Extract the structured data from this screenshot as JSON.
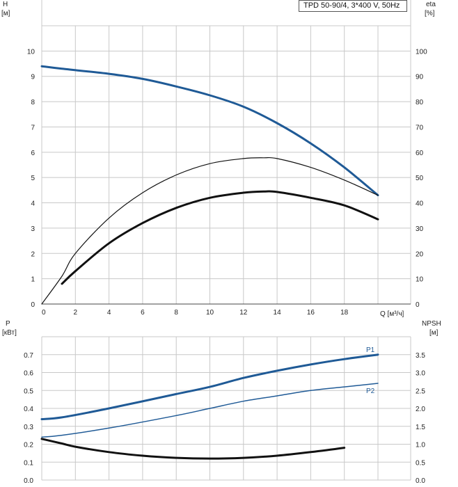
{
  "title": "TPD 50-90/4, 3*400 V, 50Hz",
  "colors": {
    "blue": "#1f5a96",
    "black": "#111111",
    "grid": "#c8c8c8"
  },
  "chart_data": [
    {
      "type": "line",
      "name": "head-efficiency",
      "xlabel": "Q [м³/ч]",
      "ylabel_left": "H",
      "ylabel_left_unit": "[м]",
      "ylabel_right": "eta",
      "ylabel_right_unit": "[%]",
      "xlim": [
        0,
        20
      ],
      "ylim_left": [
        0,
        11
      ],
      "ylim_right": [
        0,
        110
      ],
      "x_ticks": [
        "0",
        "2",
        "4",
        "6",
        "8",
        "10",
        "12",
        "14",
        "16",
        "18"
      ],
      "y_ticks_left": [
        "0",
        "1",
        "2",
        "3",
        "4",
        "5",
        "6",
        "7",
        "8",
        "9",
        "10"
      ],
      "y_ticks_right": [
        "0",
        "10",
        "20",
        "30",
        "40",
        "50",
        "60",
        "70",
        "80",
        "90",
        "100"
      ],
      "grid": true,
      "series": [
        {
          "color": "#1f5a96",
          "width": 3,
          "axis": "left",
          "x": [
            0,
            1.2,
            4,
            6,
            8,
            10,
            12,
            14,
            16,
            18,
            20
          ],
          "y": [
            9.4,
            9.3,
            9.1,
            8.9,
            8.6,
            8.25,
            7.8,
            7.15,
            6.35,
            5.4,
            4.3
          ]
        },
        {
          "color": "#111111",
          "width": 1.2,
          "axis": "right",
          "x": [
            0,
            1.2,
            2,
            4,
            6,
            8,
            10,
            12,
            13.2,
            14,
            16,
            18,
            20
          ],
          "y": [
            0,
            11,
            20,
            34,
            44,
            51,
            55.5,
            57.5,
            57.8,
            57.5,
            54,
            49,
            43
          ]
        },
        {
          "color": "#111111",
          "width": 3,
          "axis": "right",
          "x": [
            1.2,
            2,
            4,
            6,
            8,
            10,
            12,
            13.3,
            14,
            16,
            18,
            20
          ],
          "y": [
            8,
            13,
            24,
            32,
            38,
            42,
            44,
            44.5,
            44.3,
            42,
            39,
            33.5
          ]
        }
      ]
    },
    {
      "type": "line",
      "name": "power-npsh",
      "xlabel": "",
      "ylabel_left": "P",
      "ylabel_left_unit": "[кВт]",
      "ylabel_right": "NPSH",
      "ylabel_right_unit": "[м]",
      "xlim": [
        0,
        20
      ],
      "ylim_left": [
        0,
        0.8
      ],
      "ylim_right": [
        0,
        4.0
      ],
      "y_ticks_left": [
        "0.0",
        "0.1",
        "0.2",
        "0.3",
        "0.4",
        "0.5",
        "0.6",
        "0.7"
      ],
      "y_ticks_right": [
        "0.0",
        "0.5",
        "1.0",
        "1.5",
        "2.0",
        "2.5",
        "3.0",
        "3.5"
      ],
      "grid": true,
      "series": [
        {
          "name": "P1",
          "color": "#1f5a96",
          "width": 3,
          "axis": "left",
          "x": [
            0,
            1.2,
            4,
            8,
            10,
            12,
            14,
            16,
            18,
            20
          ],
          "y": [
            0.34,
            0.35,
            0.4,
            0.48,
            0.52,
            0.57,
            0.61,
            0.645,
            0.675,
            0.7
          ]
        },
        {
          "name": "P2",
          "color": "#1f5a96",
          "width": 1.5,
          "axis": "left",
          "x": [
            0,
            1.2,
            4,
            8,
            10,
            12,
            14,
            16,
            18,
            20
          ],
          "y": [
            0.24,
            0.25,
            0.29,
            0.36,
            0.4,
            0.44,
            0.47,
            0.5,
            0.52,
            0.54
          ]
        },
        {
          "color": "#111111",
          "width": 3,
          "axis": "right",
          "x": [
            0,
            1.2,
            2,
            4,
            6,
            8,
            10,
            12,
            14,
            16,
            18
          ],
          "y": [
            1.15,
            1.02,
            0.93,
            0.78,
            0.68,
            0.62,
            0.6,
            0.62,
            0.68,
            0.78,
            0.9
          ]
        }
      ]
    }
  ]
}
